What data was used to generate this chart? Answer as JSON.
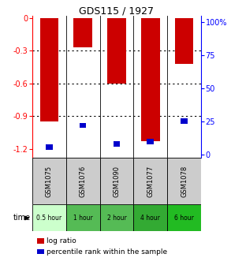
{
  "title": "GDS115 / 1927",
  "samples": [
    "GSM1075",
    "GSM1076",
    "GSM1090",
    "GSM1077",
    "GSM1078"
  ],
  "time_labels": [
    "0.5 hour",
    "1 hour",
    "2 hour",
    "4 hour",
    "6 hour"
  ],
  "time_colors": [
    "#ccffcc",
    "#55bb55",
    "#55bb55",
    "#33aa33",
    "#22bb22"
  ],
  "log_ratios": [
    -0.95,
    -0.27,
    -0.6,
    -1.13,
    -0.42
  ],
  "percentile_ranks": [
    5.5,
    22,
    8,
    10,
    25
  ],
  "ylim_left": [
    -1.28,
    0.02
  ],
  "ylim_right": [
    -2.133,
    104.4
  ],
  "left_ticks": [
    0,
    -0.3,
    -0.6,
    -0.9,
    -1.2
  ],
  "left_tick_labels": [
    "0",
    "-0.3",
    "-0.6",
    "-0.9",
    "-1.2"
  ],
  "right_ticks": [
    0,
    25,
    50,
    75,
    100
  ],
  "right_tick_labels": [
    "0",
    "25",
    "50",
    "75",
    "100%"
  ],
  "bar_color": "#cc0000",
  "percentile_color": "#0000cc",
  "bar_width": 0.55,
  "percentile_bar_width": 0.2,
  "background_color": "#ffffff",
  "sample_bg": "#cccccc",
  "legend_log_label": "log ratio",
  "legend_pct_label": "percentile rank within the sample"
}
